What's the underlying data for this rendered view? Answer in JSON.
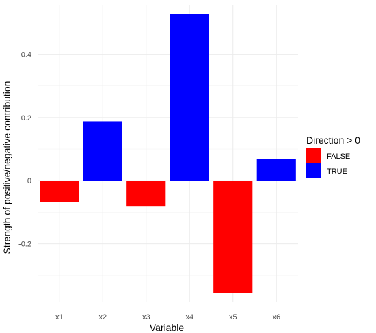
{
  "chart_data": {
    "type": "bar",
    "categories": [
      "x1",
      "x2",
      "x3",
      "x4",
      "x5",
      "x6"
    ],
    "values": [
      -0.068,
      0.188,
      -0.08,
      0.527,
      -0.355,
      0.069
    ],
    "xlabel": "Variable",
    "ylabel": "Strength of positive/negative contribution",
    "ylim": [
      -0.385,
      0.555
    ],
    "yticks": [
      -0.2,
      0,
      0.2,
      0.4
    ],
    "ytick_labels": [
      "-0.2",
      "0",
      "0.2",
      "0.4"
    ],
    "grid": true,
    "legend": {
      "title": "Direction > 0",
      "placement": "right",
      "entries": [
        {
          "label": "FALSE",
          "color": "#ff0000"
        },
        {
          "label": "TRUE",
          "color": "#0000ff"
        }
      ]
    },
    "colors": {
      "negative": "#ff0000",
      "positive": "#0000ff"
    }
  }
}
